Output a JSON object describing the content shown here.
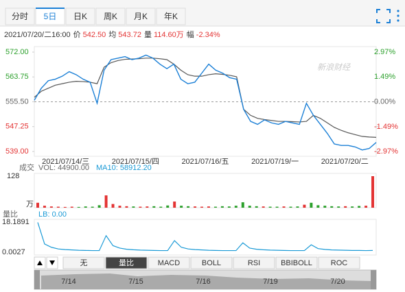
{
  "tabs": [
    "分时",
    "5日",
    "日K",
    "周K",
    "月K",
    "年K"
  ],
  "info": {
    "datetime": "2021/07/20/二16:00",
    "price_label": "价",
    "price": "542.50",
    "avg_label": "均",
    "avg": "543.72",
    "vol_label": "量",
    "vol": "114.60万",
    "chg_label": "幅",
    "chg": "-2.34%"
  },
  "watermark": "新浪财经",
  "chart_data": [
    {
      "type": "line",
      "x": [
        0,
        1,
        2,
        3,
        4,
        5,
        6,
        7,
        8,
        9,
        10,
        11,
        12,
        13,
        14,
        15,
        16,
        17,
        18,
        19,
        20,
        21,
        22,
        23,
        24,
        25,
        26,
        27,
        28,
        29,
        30,
        31,
        32,
        33,
        34,
        35,
        36,
        37,
        38,
        39,
        40,
        41,
        42,
        43,
        44,
        45,
        46,
        47,
        48,
        49
      ],
      "xlim": [
        0,
        49
      ],
      "xticks": [
        {
          "value": 4.5,
          "label": "2021/07/14/三"
        },
        {
          "value": 14.5,
          "label": "2021/07/15/四"
        },
        {
          "value": 24.5,
          "label": "2021/07/16/五"
        },
        {
          "value": 34.5,
          "label": "2021/07/19/一"
        },
        {
          "value": 44.5,
          "label": "2021/07/20/二"
        }
      ],
      "ylim": [
        539,
        572
      ],
      "yticks": [
        {
          "value": 572,
          "label": "572.00"
        },
        {
          "value": 563.75,
          "label": "563.75"
        },
        {
          "value": 555.5,
          "label": "555.50"
        },
        {
          "value": 547.25,
          "label": "547.25"
        },
        {
          "value": 539,
          "label": "539.00"
        }
      ],
      "y2lim": [
        -2.97,
        2.97
      ],
      "y2ticks": [
        {
          "value": 2.97,
          "label": "2.97%"
        },
        {
          "value": 1.49,
          "label": "1.49%"
        },
        {
          "value": 0,
          "label": "0.00%"
        },
        {
          "value": -1.49,
          "label": "-1.49%"
        },
        {
          "value": -2.97,
          "label": "-2.97%"
        }
      ],
      "prev_close": 555.5,
      "series": [
        {
          "name": "价",
          "color": "#1a7fd6",
          "values": [
            556,
            560,
            562.5,
            563,
            564,
            565.5,
            564.5,
            563,
            562,
            555,
            566,
            569.5,
            570,
            570.5,
            569.5,
            570,
            571,
            570,
            568,
            566.5,
            568,
            563,
            561.5,
            562,
            565,
            568,
            566,
            565,
            563.5,
            563,
            553,
            549,
            548,
            549.5,
            548.5,
            548,
            549,
            548.5,
            548,
            555,
            551,
            548,
            545,
            541.5,
            541,
            541,
            540.5,
            539.5,
            540,
            542
          ]
        },
        {
          "name": "均",
          "color": "#555555",
          "values": [
            557,
            559,
            560,
            561,
            561.5,
            562,
            562.3,
            562.2,
            562,
            561.5,
            567,
            568.5,
            569.2,
            569.6,
            569.7,
            569.8,
            570,
            570,
            569.8,
            569.5,
            568,
            566,
            564.5,
            564,
            564,
            564.5,
            564.8,
            564.6,
            564.3,
            563.8,
            553,
            551,
            550,
            549.6,
            549.3,
            549,
            549,
            548.9,
            548.8,
            549,
            551,
            550,
            548.5,
            547,
            546,
            545.2,
            544.6,
            544,
            543.8,
            543.7
          ]
        }
      ]
    },
    {
      "type": "bar",
      "title": "成交",
      "legend": [
        "VOL: 44900.00",
        "MA10: 58912.20"
      ],
      "unit": "万",
      "ylim": [
        0,
        128
      ],
      "yticks": [
        128
      ],
      "up_color": "#e33333",
      "down_color": "#2ca02c",
      "values": [
        20,
        8,
        5,
        4,
        3,
        4,
        3,
        5,
        4,
        10,
        50,
        15,
        8,
        6,
        5,
        4,
        5,
        6,
        4,
        9,
        25,
        8,
        6,
        5,
        4,
        5,
        4,
        6,
        5,
        8,
        22,
        8,
        6,
        5,
        4,
        4,
        5,
        4,
        5,
        12,
        20,
        10,
        8,
        6,
        5,
        6,
        5,
        7,
        8,
        128
      ]
    },
    {
      "type": "line",
      "title": "量比",
      "legend": "LB: 0.00",
      "color": "#1a9ad6",
      "ylim": [
        0.0027,
        18.1891
      ],
      "yticks": [
        18.1891,
        0.0027
      ],
      "values": [
        18,
        5,
        3,
        2,
        1.6,
        1.4,
        1.2,
        1.1,
        1,
        1,
        10,
        4,
        2.5,
        1.8,
        1.5,
        1.3,
        1.2,
        1.1,
        1,
        1,
        7,
        3,
        2,
        1.6,
        1.4,
        1.2,
        1.1,
        1,
        1,
        1,
        5.7,
        2.5,
        1.8,
        1.5,
        1.3,
        1.2,
        1.1,
        1,
        1,
        1,
        4.5,
        2.2,
        1.7,
        1.4,
        1.3,
        1.2,
        1.1,
        1.1,
        1,
        1.1
      ]
    }
  ],
  "indicator_tabs": [
    "无",
    "量比",
    "MACD",
    "BOLL",
    "RSI",
    "BBIBOLL",
    "ROC"
  ],
  "navigator_labels": [
    "7/14",
    "7/15",
    "7/16",
    "7/19",
    "7/20"
  ]
}
